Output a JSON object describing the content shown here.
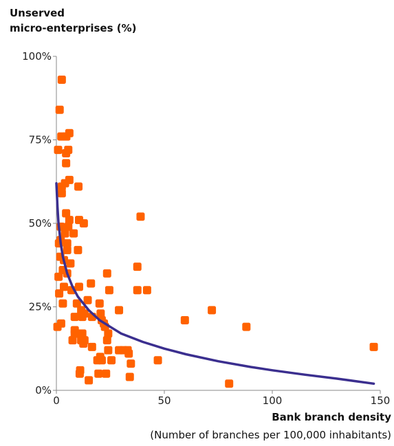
{
  "chart_data": {
    "type": "scatter",
    "title": "",
    "ylabel_line1": "Unserved",
    "ylabel_line2": "micro-enterprises (%)",
    "xlabel": "Bank branch density",
    "xlabel_note": "(Number of branches per 100,000 inhabitants)",
    "xlim": [
      0,
      150
    ],
    "ylim": [
      0,
      100
    ],
    "xticks": [
      0,
      50,
      100,
      150
    ],
    "xtick_labels": [
      "0",
      "50",
      "100",
      "150"
    ],
    "yticks": [
      0,
      25,
      50,
      75,
      100
    ],
    "ytick_labels": [
      "0%",
      "25%",
      "50%",
      "75%",
      "100%"
    ],
    "grid": false,
    "colors": {
      "points": "#ff6200",
      "trend": "#3b2f8f",
      "axis": "#888888"
    },
    "points": [
      [
        0.5,
        19
      ],
      [
        0.8,
        72
      ],
      [
        1,
        34
      ],
      [
        1.2,
        44
      ],
      [
        1.3,
        29
      ],
      [
        1.5,
        84
      ],
      [
        1.8,
        40
      ],
      [
        2,
        49
      ],
      [
        2,
        45
      ],
      [
        2.2,
        20
      ],
      [
        2.3,
        76
      ],
      [
        2.5,
        61
      ],
      [
        2.5,
        59
      ],
      [
        2.5,
        93
      ],
      [
        3,
        36
      ],
      [
        3,
        26
      ],
      [
        3.5,
        39
      ],
      [
        3.5,
        31
      ],
      [
        4,
        47
      ],
      [
        4,
        62
      ],
      [
        4.5,
        71
      ],
      [
        4.5,
        68
      ],
      [
        4.5,
        53
      ],
      [
        4.6,
        76
      ],
      [
        5,
        44
      ],
      [
        5,
        42
      ],
      [
        5,
        35
      ],
      [
        5.5,
        72
      ],
      [
        5.5,
        49
      ],
      [
        6,
        77
      ],
      [
        6,
        63
      ],
      [
        6,
        51
      ],
      [
        6.5,
        38
      ],
      [
        7,
        30
      ],
      [
        7.5,
        15
      ],
      [
        8,
        47
      ],
      [
        8.5,
        18
      ],
      [
        8.5,
        22
      ],
      [
        8.5,
        17
      ],
      [
        9.5,
        26
      ],
      [
        9.5,
        17
      ],
      [
        10,
        42
      ],
      [
        10.2,
        61
      ],
      [
        10.5,
        51
      ],
      [
        10.5,
        31
      ],
      [
        10.8,
        5
      ],
      [
        11,
        6
      ],
      [
        11.5,
        24
      ],
      [
        11.5,
        15
      ],
      [
        12,
        17
      ],
      [
        12,
        23
      ],
      [
        12,
        22
      ],
      [
        12.5,
        14
      ],
      [
        12.7,
        50
      ],
      [
        13,
        23
      ],
      [
        13,
        15
      ],
      [
        14.5,
        27
      ],
      [
        15,
        3
      ],
      [
        16,
        32
      ],
      [
        16.5,
        22
      ],
      [
        16.5,
        13
      ],
      [
        19,
        9
      ],
      [
        19.5,
        5
      ],
      [
        20,
        26
      ],
      [
        20.3,
        10
      ],
      [
        20.5,
        23
      ],
      [
        21,
        21
      ],
      [
        21,
        9
      ],
      [
        22,
        20
      ],
      [
        22.5,
        19
      ],
      [
        23,
        5
      ],
      [
        23.5,
        35
      ],
      [
        23.5,
        15
      ],
      [
        24,
        17
      ],
      [
        24,
        12
      ],
      [
        24.5,
        30
      ],
      [
        25.5,
        9
      ],
      [
        29,
        24
      ],
      [
        29,
        12
      ],
      [
        31,
        12
      ],
      [
        33,
        12
      ],
      [
        33.5,
        11
      ],
      [
        34,
        4
      ],
      [
        34.5,
        8
      ],
      [
        37.5,
        37
      ],
      [
        37.5,
        30
      ],
      [
        39,
        52
      ],
      [
        42,
        30
      ],
      [
        47,
        9
      ],
      [
        59.5,
        21
      ],
      [
        72,
        24
      ],
      [
        80,
        2
      ],
      [
        88,
        19
      ],
      [
        147,
        13
      ]
    ],
    "trend": [
      [
        0,
        62
      ],
      [
        0.5,
        55
      ],
      [
        1,
        50
      ],
      [
        2,
        44
      ],
      [
        3,
        40
      ],
      [
        5,
        35
      ],
      [
        7.5,
        31
      ],
      [
        10,
        28
      ],
      [
        15,
        24
      ],
      [
        20,
        21
      ],
      [
        25,
        19
      ],
      [
        30,
        17
      ],
      [
        40,
        14.5
      ],
      [
        50,
        12.5
      ],
      [
        60,
        10.8
      ],
      [
        75,
        8.7
      ],
      [
        90,
        7
      ],
      [
        100,
        6
      ],
      [
        115,
        4.7
      ],
      [
        130,
        3.5
      ],
      [
        147,
        2
      ]
    ]
  }
}
